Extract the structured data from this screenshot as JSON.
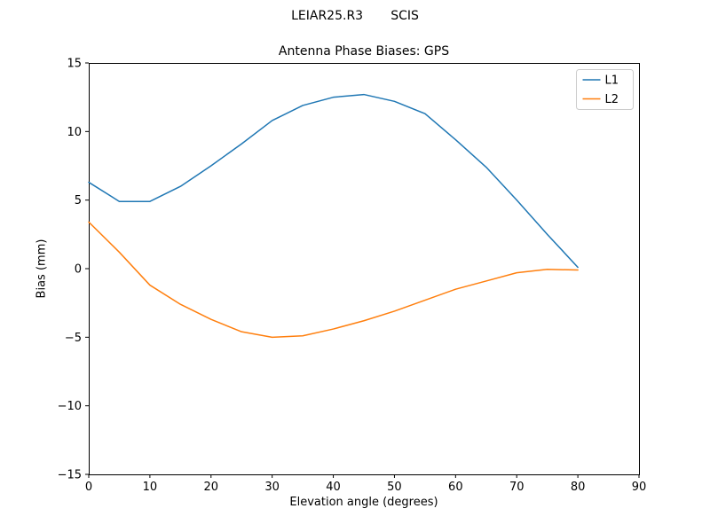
{
  "chart_data": {
    "type": "line",
    "suptitle": "LEIAR25.R3       SCIS",
    "title": "Antenna Phase Biases: GPS",
    "xlabel": "Elevation angle (degrees)",
    "ylabel": "Bias (mm)",
    "xlim": [
      0,
      90
    ],
    "ylim": [
      -15,
      15
    ],
    "xticks": [
      0,
      10,
      20,
      30,
      40,
      50,
      60,
      70,
      80,
      90
    ],
    "yticks": [
      -15,
      -10,
      -5,
      0,
      5,
      10,
      15
    ],
    "grid": false,
    "legend_position": "upper right",
    "x": [
      0,
      5,
      10,
      15,
      20,
      25,
      30,
      35,
      40,
      45,
      50,
      55,
      60,
      65,
      70,
      75,
      80
    ],
    "series": [
      {
        "name": "L1",
        "color": "#1f77b4",
        "values": [
          6.3,
          4.9,
          4.9,
          6.0,
          7.5,
          9.1,
          10.8,
          11.9,
          12.5,
          12.7,
          12.2,
          11.3,
          9.4,
          7.4,
          5.0,
          2.5,
          0.1
        ]
      },
      {
        "name": "L2",
        "color": "#ff7f0e",
        "values": [
          3.4,
          1.2,
          -1.2,
          -2.6,
          -3.7,
          -4.6,
          -5.0,
          -4.9,
          -4.4,
          -3.8,
          -3.1,
          -2.3,
          -1.5,
          -0.9,
          -0.3,
          -0.05,
          -0.1
        ]
      }
    ],
    "axes": {
      "spine_color": "#000000",
      "legend_border_color": "#cccccc",
      "legend_background": "#ffffff"
    }
  }
}
